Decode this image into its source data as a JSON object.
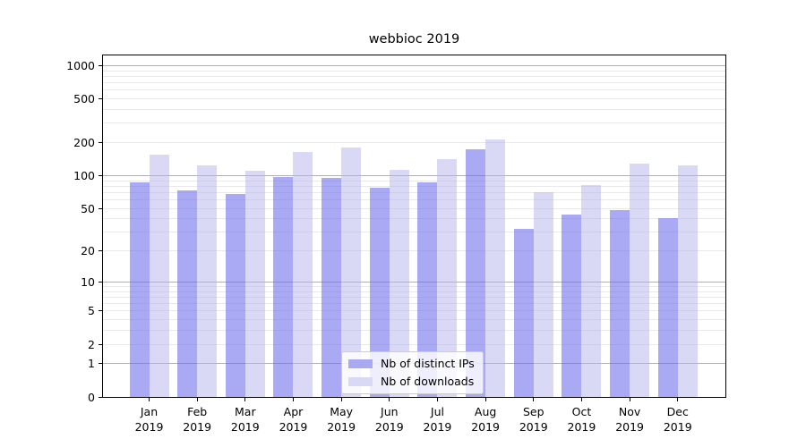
{
  "title": "webbioc 2019",
  "chart_data": {
    "type": "bar",
    "title": "webbioc 2019",
    "x": {
      "months": [
        "Jan",
        "Feb",
        "Mar",
        "Apr",
        "May",
        "Jun",
        "Jul",
        "Aug",
        "Sep",
        "Oct",
        "Nov",
        "Dec"
      ],
      "year": "2019"
    },
    "categories": [
      "Jan 2019",
      "Feb 2019",
      "Mar 2019",
      "Apr 2019",
      "May 2019",
      "Jun 2019",
      "Jul 2019",
      "Aug 2019",
      "Sep 2019",
      "Oct 2019",
      "Nov 2019",
      "Dec 2019"
    ],
    "series": [
      {
        "name": "Nb of distinct IPs",
        "color": "#a9a9f1",
        "fill": "rgba(105,105,235,0.57)",
        "values": [
          86,
          73,
          68,
          97,
          96,
          77,
          86,
          174,
          32,
          44,
          48,
          41
        ]
      },
      {
        "name": "Nb of downloads",
        "color": "#d9d9f6",
        "fill": "rgba(180,180,238,0.5)",
        "values": [
          154,
          125,
          111,
          164,
          181,
          112,
          141,
          212,
          70,
          82,
          128,
          125
        ]
      }
    ],
    "yaxis": {
      "scale": "log1p",
      "ticks": [
        0,
        1,
        2,
        5,
        10,
        20,
        50,
        100,
        200,
        500,
        1000
      ],
      "ylim": [
        0,
        1260
      ]
    },
    "grid": {
      "major": [
        1,
        10,
        100,
        1000
      ],
      "minor": [
        2,
        3,
        4,
        5,
        6,
        7,
        8,
        9,
        20,
        30,
        40,
        50,
        60,
        70,
        80,
        90,
        200,
        300,
        400,
        500,
        600,
        700,
        800,
        900
      ]
    },
    "legend": {
      "position": "lower center"
    },
    "colors": {
      "grid_major": "#b0b0b0",
      "grid_minor": "#e9e9e9",
      "spine": "#000000",
      "background": "#ffffff"
    }
  }
}
